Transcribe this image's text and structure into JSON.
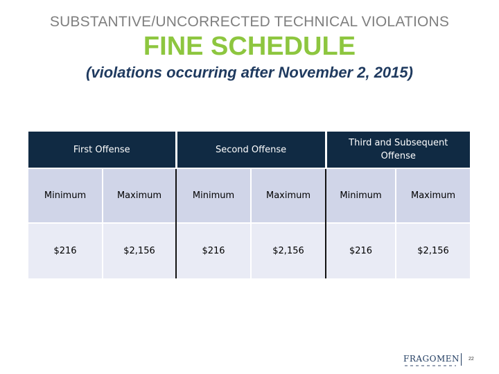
{
  "header": {
    "line1": "SUBSTANTIVE/UNCORRECTED TECHNICAL VIOLATIONS",
    "line2": "FINE SCHEDULE",
    "line3": "(violations occurring after November 2, 2015)"
  },
  "table": {
    "groups": [
      "First Offense",
      "Second Offense",
      "Third and Subsequent Offense"
    ],
    "subheaders": [
      "Minimum",
      "Maximum",
      "Minimum",
      "Maximum",
      "Minimum",
      "Maximum"
    ],
    "values": [
      "$216",
      "$2,156",
      "$216",
      "$2,156",
      "$216",
      "$2,156"
    ]
  },
  "footer": {
    "logo": "FRAGOMEN",
    "page_number": "22"
  }
}
